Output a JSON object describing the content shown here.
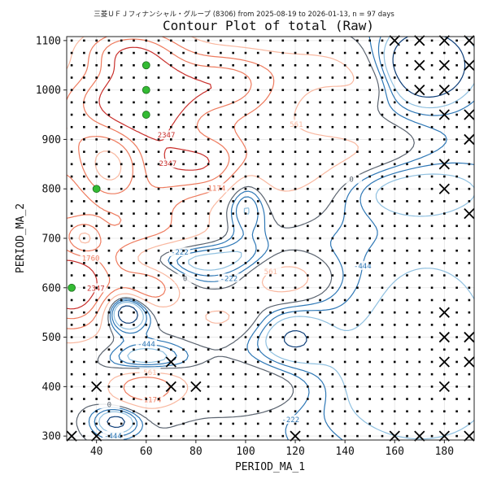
{
  "chart_data": {
    "type": "contour",
    "suptitle": "三菱ＵＦＪフィナンシャル・グループ (8306) from 2025-08-19 to 2026-01-13, n = 97 days",
    "title": "Contour Plot of total (Raw)",
    "xlabel": "PERIOD_MA_1",
    "ylabel": "PERIOD_MA_2",
    "xlim": [
      28,
      192
    ],
    "ylim": [
      292,
      1108
    ],
    "xticks": [
      40,
      60,
      80,
      100,
      120,
      140,
      160,
      180
    ],
    "yticks": [
      300,
      400,
      500,
      600,
      700,
      800,
      900,
      1000,
      1100
    ],
    "grid": true,
    "contour_levels": [
      -1111,
      -667,
      -444,
      -222,
      0,
      561,
      1174,
      1760,
      2347
    ],
    "contour_labels_shown": [
      "-1111",
      "-444",
      "-222",
      "0",
      "561",
      "1174",
      "1760",
      "2347"
    ],
    "colors": {
      "positive_strong": "#c9302c",
      "positive_mid": "#ee7b5e",
      "positive_light": "#f9b8a0",
      "zero": "#5b6470",
      "negative_mid": "#2f78b6",
      "negative_light": "#8fc0e0",
      "negative_strong": "#0c3d78",
      "best_marker": "#33bb33",
      "worst_marker": "#000000"
    },
    "grid_points": {
      "x": [
        30,
        35,
        40,
        45,
        50,
        55,
        60,
        65,
        70,
        75,
        80,
        85,
        90,
        95,
        100,
        105,
        110,
        115,
        120,
        125,
        130,
        135,
        140,
        145,
        150,
        155,
        160,
        165,
        170,
        175,
        180,
        185,
        190
      ],
      "y": [
        300,
        325,
        350,
        375,
        400,
        425,
        450,
        475,
        500,
        525,
        550,
        575,
        600,
        625,
        650,
        675,
        700,
        725,
        750,
        775,
        800,
        825,
        850,
        875,
        900,
        925,
        950,
        975,
        1000,
        1025,
        1050,
        1075,
        1100
      ]
    },
    "best_points": [
      {
        "x": 60,
        "y": 1050
      },
      {
        "x": 60,
        "y": 1000
      },
      {
        "x": 60,
        "y": 950
      },
      {
        "x": 40,
        "y": 800
      },
      {
        "x": 30,
        "y": 600
      }
    ],
    "worst_points": [
      {
        "x": 160,
        "y": 1100
      },
      {
        "x": 170,
        "y": 1100
      },
      {
        "x": 180,
        "y": 1100
      },
      {
        "x": 190,
        "y": 1100
      },
      {
        "x": 170,
        "y": 1050
      },
      {
        "x": 180,
        "y": 1050
      },
      {
        "x": 190,
        "y": 1050
      },
      {
        "x": 170,
        "y": 1000
      },
      {
        "x": 180,
        "y": 1000
      },
      {
        "x": 180,
        "y": 950
      },
      {
        "x": 190,
        "y": 950
      },
      {
        "x": 190,
        "y": 900
      },
      {
        "x": 180,
        "y": 850
      },
      {
        "x": 180,
        "y": 800
      },
      {
        "x": 190,
        "y": 750
      },
      {
        "x": 180,
        "y": 550
      },
      {
        "x": 180,
        "y": 500
      },
      {
        "x": 190,
        "y": 500
      },
      {
        "x": 180,
        "y": 450
      },
      {
        "x": 190,
        "y": 450
      },
      {
        "x": 70,
        "y": 450
      },
      {
        "x": 40,
        "y": 400
      },
      {
        "x": 70,
        "y": 400
      },
      {
        "x": 80,
        "y": 400
      },
      {
        "x": 180,
        "y": 400
      },
      {
        "x": 30,
        "y": 300
      },
      {
        "x": 40,
        "y": 300
      },
      {
        "x": 120,
        "y": 300
      },
      {
        "x": 160,
        "y": 300
      },
      {
        "x": 170,
        "y": 300
      },
      {
        "x": 180,
        "y": 300
      },
      {
        "x": 190,
        "y": 300
      }
    ]
  }
}
